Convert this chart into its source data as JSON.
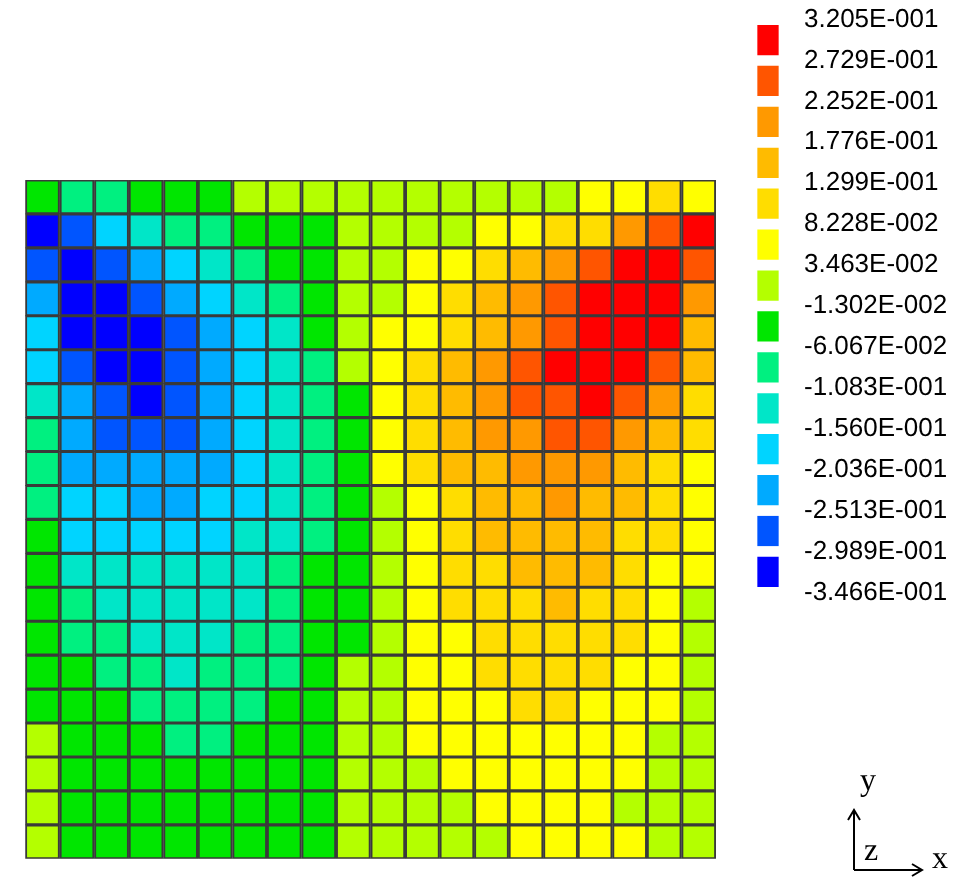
{
  "chart_data": {
    "type": "heatmap",
    "annotations": [
      "y",
      "z",
      "x"
    ],
    "categories": [
      null,
      null,
      null,
      null,
      null,
      null,
      null,
      null,
      null,
      null,
      null,
      null,
      null,
      null,
      null,
      null,
      null,
      null,
      null,
      null
    ],
    "y_categories": [
      null,
      null,
      null,
      null,
      null,
      null,
      null,
      null,
      null,
      null,
      null,
      null,
      null,
      null,
      null,
      null,
      null,
      null,
      null,
      null
    ],
    "colors": [
      "#0000ff",
      "#0055ff",
      "#00aaff",
      "#00d4ff",
      "#00e6c8",
      "#00f080",
      "#00e600",
      "#b4ff00",
      "#ffff00",
      "#ffdd00",
      "#ffbb00",
      "#ff9900",
      "#ff5500",
      "#ff0000"
    ],
    "clim": [
      -0.3466,
      0.3205
    ],
    "cticks": [
      {
        "value": -0.3466,
        "label": "-3.466E-001"
      },
      {
        "value": -0.2989,
        "label": "-2.989E-001"
      },
      {
        "value": -0.2513,
        "label": "-2.513E-001"
      },
      {
        "value": -0.2036,
        "label": "-2.036E-001"
      },
      {
        "value": -0.156,
        "label": "-1.560E-001"
      },
      {
        "value": -0.1083,
        "label": "-1.083E-001"
      },
      {
        "value": -0.06067,
        "label": "-6.067E-002"
      },
      {
        "value": -0.01302,
        "label": "-1.302E-002"
      },
      {
        "value": 0.03463,
        "label": "3.463E-002"
      },
      {
        "value": 0.08228,
        "label": "8.228E-002"
      },
      {
        "value": 0.1299,
        "label": "1.299E-001"
      },
      {
        "value": 0.1776,
        "label": "1.776E-001"
      },
      {
        "value": 0.2252,
        "label": "2.252E-001"
      },
      {
        "value": 0.2729,
        "label": "2.729E-001"
      },
      {
        "value": 0.3205,
        "label": "3.205E-001"
      }
    ],
    "cells": [
      [
        -0.037,
        -0.084,
        -0.084,
        -0.037,
        -0.037,
        -0.037,
        0.011,
        0.011,
        0.011,
        0.011,
        0.011,
        0.011,
        0.011,
        0.011,
        0.011,
        0.011,
        0.058,
        0.058,
        0.106,
        0.058
      ],
      [
        -0.323,
        -0.275,
        -0.18,
        -0.132,
        -0.084,
        -0.084,
        -0.037,
        -0.037,
        -0.037,
        0.011,
        0.011,
        0.011,
        0.011,
        0.058,
        0.058,
        0.106,
        0.106,
        0.201,
        0.249,
        0.297
      ],
      [
        -0.275,
        -0.323,
        -0.275,
        -0.227,
        -0.18,
        -0.132,
        -0.084,
        -0.037,
        -0.037,
        0.011,
        0.011,
        0.058,
        0.058,
        0.106,
        0.154,
        0.201,
        0.249,
        0.297,
        0.297,
        0.249
      ],
      [
        -0.227,
        -0.323,
        -0.323,
        -0.275,
        -0.227,
        -0.18,
        -0.132,
        -0.084,
        -0.037,
        0.011,
        0.011,
        0.058,
        0.106,
        0.154,
        0.201,
        0.249,
        0.297,
        0.297,
        0.297,
        0.201
      ],
      [
        -0.18,
        -0.323,
        -0.323,
        -0.323,
        -0.275,
        -0.227,
        -0.18,
        -0.132,
        -0.037,
        0.011,
        0.058,
        0.058,
        0.106,
        0.154,
        0.201,
        0.249,
        0.297,
        0.297,
        0.297,
        0.154
      ],
      [
        -0.18,
        -0.275,
        -0.323,
        -0.323,
        -0.275,
        -0.227,
        -0.18,
        -0.132,
        -0.084,
        0.011,
        0.058,
        0.106,
        0.154,
        0.201,
        0.249,
        0.297,
        0.297,
        0.297,
        0.249,
        0.154
      ],
      [
        -0.132,
        -0.227,
        -0.275,
        -0.323,
        -0.275,
        -0.227,
        -0.18,
        -0.132,
        -0.084,
        -0.037,
        0.058,
        0.106,
        0.154,
        0.201,
        0.249,
        0.249,
        0.297,
        0.249,
        0.201,
        0.106
      ],
      [
        -0.084,
        -0.227,
        -0.275,
        -0.275,
        -0.275,
        -0.227,
        -0.18,
        -0.132,
        -0.084,
        -0.037,
        0.058,
        0.106,
        0.154,
        0.201,
        0.201,
        0.249,
        0.249,
        0.201,
        0.154,
        0.106
      ],
      [
        -0.084,
        -0.227,
        -0.227,
        -0.227,
        -0.227,
        -0.227,
        -0.18,
        -0.132,
        -0.084,
        -0.037,
        0.058,
        0.106,
        0.154,
        0.154,
        0.201,
        0.201,
        0.201,
        0.154,
        0.106,
        0.058
      ],
      [
        -0.084,
        -0.18,
        -0.18,
        -0.227,
        -0.227,
        -0.18,
        -0.18,
        -0.132,
        -0.084,
        -0.037,
        0.011,
        0.058,
        0.106,
        0.154,
        0.154,
        0.201,
        0.154,
        0.154,
        0.106,
        0.058
      ],
      [
        -0.037,
        -0.18,
        -0.18,
        -0.18,
        -0.18,
        -0.18,
        -0.132,
        -0.132,
        -0.084,
        -0.037,
        0.011,
        0.058,
        0.106,
        0.154,
        0.154,
        0.154,
        0.154,
        0.106,
        0.106,
        0.058
      ],
      [
        -0.037,
        -0.132,
        -0.132,
        -0.132,
        -0.132,
        -0.132,
        -0.132,
        -0.084,
        -0.037,
        -0.037,
        0.011,
        0.058,
        0.106,
        0.106,
        0.154,
        0.154,
        0.154,
        0.106,
        0.058,
        0.058
      ],
      [
        -0.037,
        -0.084,
        -0.132,
        -0.132,
        -0.132,
        -0.132,
        -0.132,
        -0.084,
        -0.037,
        -0.037,
        0.011,
        0.058,
        0.106,
        0.106,
        0.106,
        0.154,
        0.106,
        0.106,
        0.058,
        0.011
      ],
      [
        -0.037,
        -0.084,
        -0.084,
        -0.132,
        -0.132,
        -0.132,
        -0.084,
        -0.084,
        -0.037,
        -0.037,
        0.011,
        0.058,
        0.058,
        0.106,
        0.106,
        0.106,
        0.106,
        0.106,
        0.058,
        0.011
      ],
      [
        -0.037,
        -0.037,
        -0.084,
        -0.084,
        -0.132,
        -0.084,
        -0.084,
        -0.084,
        -0.037,
        0.011,
        0.011,
        0.058,
        0.058,
        0.106,
        0.106,
        0.106,
        0.106,
        0.058,
        0.058,
        0.011
      ],
      [
        -0.037,
        -0.037,
        -0.037,
        -0.084,
        -0.084,
        -0.084,
        -0.084,
        -0.037,
        -0.037,
        0.011,
        0.011,
        0.058,
        0.058,
        0.058,
        0.106,
        0.106,
        0.058,
        0.058,
        0.058,
        0.011
      ],
      [
        0.011,
        -0.037,
        -0.037,
        -0.037,
        -0.084,
        -0.084,
        -0.037,
        -0.037,
        -0.037,
        0.011,
        0.011,
        0.058,
        0.058,
        0.058,
        0.058,
        0.058,
        0.058,
        0.058,
        0.011,
        0.011
      ],
      [
        0.011,
        -0.037,
        -0.037,
        -0.037,
        -0.037,
        -0.037,
        -0.037,
        -0.037,
        -0.037,
        0.011,
        0.011,
        0.011,
        0.058,
        0.058,
        0.058,
        0.058,
        0.058,
        0.058,
        0.011,
        0.011
      ],
      [
        0.011,
        -0.037,
        -0.037,
        -0.037,
        -0.037,
        -0.037,
        -0.037,
        -0.037,
        -0.037,
        0.011,
        0.011,
        0.011,
        0.011,
        0.058,
        0.058,
        0.058,
        0.058,
        0.011,
        0.011,
        0.011
      ],
      [
        0.011,
        -0.037,
        -0.037,
        -0.037,
        -0.037,
        -0.037,
        -0.037,
        -0.037,
        -0.037,
        0.011,
        0.011,
        0.011,
        0.011,
        0.011,
        0.058,
        0.058,
        0.058,
        0.058,
        0.011,
        0.011
      ]
    ]
  }
}
